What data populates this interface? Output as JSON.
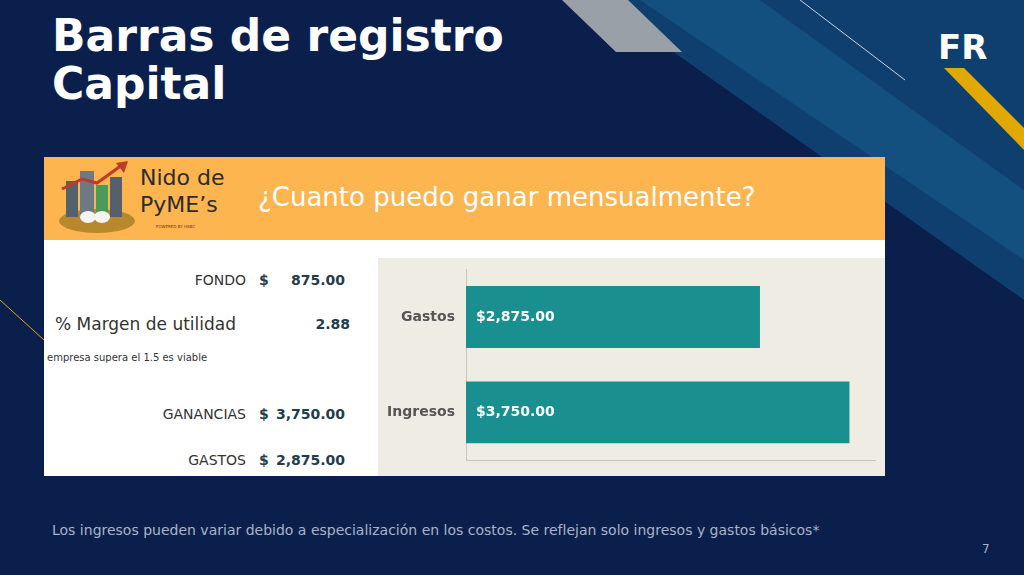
{
  "slide": {
    "title": [
      "Barras de registro",
      "Capital"
    ],
    "badge": "FR",
    "footer": "Los ingresos pueden variar debido a especialización en los costos. Se reflejan solo ingresos y gastos básicos*",
    "page": 7
  },
  "banner": {
    "logo_text": [
      "Nido de",
      "PyME’s"
    ],
    "logo_small": "POWERED BY HSBC",
    "heading": "¿Cuanto puedo ganar mensualmente?"
  },
  "summary": {
    "rows": [
      {
        "label": "FONDO",
        "currency": "$",
        "value": "875.00"
      },
      {
        "label": "% Margen de utilidad",
        "value": "2.88"
      },
      {
        "label": "GANANCIAS",
        "currency": "$",
        "value": "3,750.00"
      },
      {
        "label": "GASTOS",
        "currency": "$",
        "value": "2,875.00"
      }
    ],
    "note": "empresa supera el 1.5  es viable"
  },
  "chart_data": {
    "type": "bar",
    "orientation": "horizontal",
    "categories": [
      "Gastos",
      "Ingresos"
    ],
    "values": [
      2875,
      3750
    ],
    "value_labels": [
      "$2,875.00",
      "$3,750.00"
    ],
    "data_labels": true,
    "color": "#1a8f8f",
    "xlim": [
      0,
      4000
    ],
    "tick_labels": "y",
    "grid": false
  }
}
